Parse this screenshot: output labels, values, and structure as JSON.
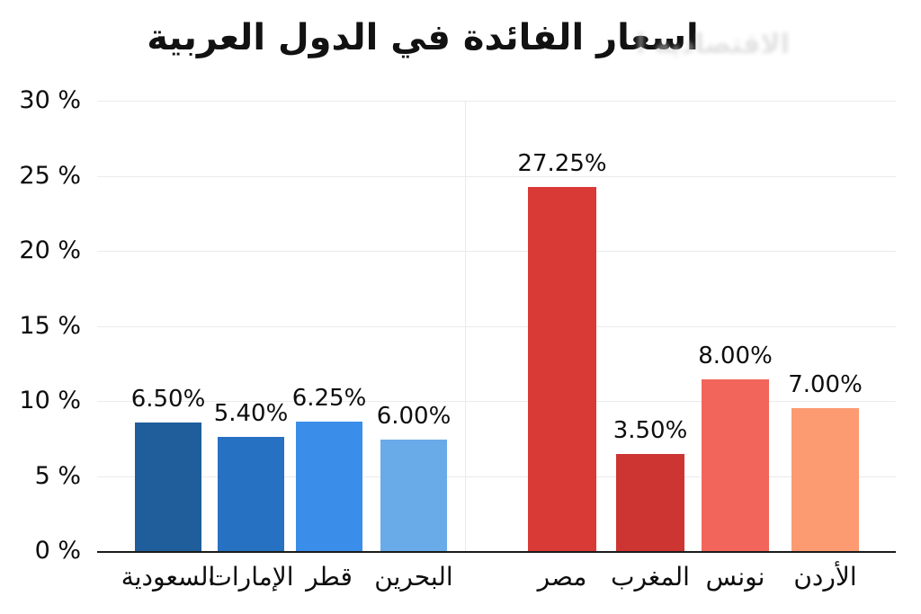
{
  "title": "اسعار الفائدة في الدول العربية",
  "watermark": {
    "text": "الاقتصادية العربية"
  },
  "y_axis": {
    "tick_labels": [
      "30 %",
      "25 %",
      "20 %",
      "15 %",
      "10 %",
      "5 %",
      "0 %"
    ]
  },
  "chart_data": {
    "type": "bar",
    "title": "اسعار الفائدة في الدول العربية",
    "categories": [
      "السعودية",
      "الإمارات",
      "قطر",
      "البحرين",
      "مصر",
      "المغرب",
      "نونس",
      "الأردن"
    ],
    "category_keys": [
      "saudi-arabia",
      "uae",
      "qatar",
      "bahrain",
      "egypt",
      "morocco",
      "tunisia",
      "jordan"
    ],
    "values": [
      6.5,
      5.4,
      6.25,
      6.0,
      27.25,
      3.5,
      8.0,
      7.0
    ],
    "value_labels": [
      "6.50%",
      "5.40%",
      "6.25%",
      "6.00%",
      "27.25%",
      "3.50%",
      "8.00%",
      "7.00%"
    ],
    "bar_heights_pct_as_drawn": [
      8.56,
      7.6,
      8.62,
      7.42,
      24.25,
      6.47,
      11.44,
      9.52
    ],
    "bar_colors": [
      "#1f5e9a",
      "#2671c1",
      "#3a8ee9",
      "#69abe9",
      "#d93a36",
      "#cd3533",
      "#f2655b",
      "#fc9a72"
    ],
    "groups": [
      {
        "name": "gulf-countries",
        "members": [
          "السعودية",
          "الإمارات",
          "قطر",
          "البحرين"
        ]
      },
      {
        "name": "other-arab-countries",
        "members": [
          "مصر",
          "المغرب",
          "نونس",
          "الأردن"
        ]
      }
    ],
    "xlabel": "",
    "ylabel": "",
    "ylim": [
      0,
      30
    ],
    "y_ticks": [
      0,
      5,
      10,
      15,
      20,
      25,
      30
    ],
    "grid": true,
    "legend": false,
    "axis_color": "#1b1b1b",
    "gridline_color": "#ebebeb"
  }
}
